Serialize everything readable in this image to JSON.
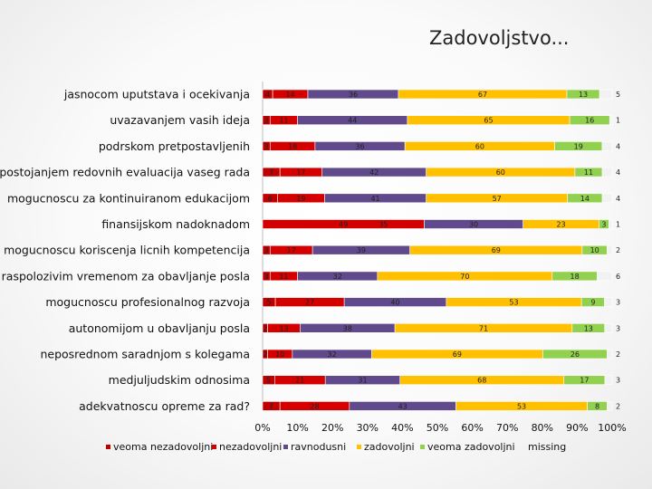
{
  "chart_data": {
    "type": "bar",
    "orientation": "horizontal",
    "stacked": "percent",
    "title": "Zadovoljstvo...",
    "categories": [
      "jasnocom uputstava i ocekivanja",
      "uvazavanjem vasih ideja",
      "podrskom pretpostavljenih",
      "postojanjem redovnih evaluacija vaseg rada",
      "mogucnoscu za kontinuiranom edukacijom",
      "finansijskom nadoknadom",
      "mogucnoscu koriscenja licnih kompetencija",
      "raspolozivim vremenom za obavljanje posla",
      "mogucnoscu profesionalnog razvoja",
      "autonomijom u obavljanju posla",
      "neposrednom saradnjom s kolegama",
      "medjuljudskim odnosima",
      "adekvatnoscu opreme za rad?"
    ],
    "series": [
      {
        "name": "veoma nezadovoljni",
        "color": "#c00000",
        "values": [
          4,
          3,
          3,
          7,
          6,
          0,
          3,
          3,
          5,
          2,
          2,
          5,
          7
        ],
        "labels": [
          "4",
          "3",
          "3",
          "7",
          "6",
          "",
          "3",
          "3",
          "5",
          "2",
          "2",
          "5",
          "7"
        ]
      },
      {
        "name": "nezadovoljni",
        "color": "#d40000",
        "values": [
          14,
          11,
          18,
          17,
          19,
          49,
          17,
          11,
          27,
          13,
          10,
          21,
          28
        ],
        "labels": [
          "14",
          "11",
          "18",
          "17",
          "19",
          "49",
          "17",
          "11",
          "27",
          "13",
          "10",
          "21",
          "28"
        ]
      },
      {
        "name": "ravnodusni",
        "color": "#604a8b",
        "values": [
          36,
          44,
          36,
          42,
          41,
          30,
          39,
          32,
          40,
          38,
          32,
          31,
          43
        ],
        "labels": [
          "36",
          "44",
          "36",
          "42",
          "41",
          "30",
          "39",
          "32",
          "40",
          "38",
          "32",
          "31",
          "43"
        ]
      },
      {
        "name": "zadovoljni",
        "color": "#ffc000",
        "values": [
          67,
          65,
          60,
          60,
          57,
          23,
          69,
          70,
          53,
          71,
          69,
          68,
          53
        ],
        "labels": [
          "67",
          "65",
          "60",
          "60",
          "57",
          "23",
          "69",
          "70",
          "53",
          "71",
          "69",
          "68",
          "53"
        ]
      },
      {
        "name": "veoma zadovoljni",
        "color": "#92d050",
        "values": [
          13,
          16,
          19,
          11,
          14,
          3,
          10,
          18,
          9,
          13,
          26,
          17,
          8
        ],
        "labels": [
          "13",
          "16",
          "19",
          "11",
          "14",
          "3",
          "10",
          "18",
          "9",
          "13",
          "26",
          "17",
          "8"
        ]
      },
      {
        "name": "missing",
        "color": "#f2f2f2",
        "values": [
          5,
          1,
          4,
          4,
          4,
          1,
          2,
          6,
          3,
          3,
          2,
          3,
          2
        ],
        "labels": [
          "5",
          "1",
          "4",
          "4",
          "4",
          "1",
          "2",
          "6",
          "3",
          "3",
          "2",
          "3",
          "2"
        ]
      }
    ],
    "finansijska_extra_label": "35",
    "xlim": [
      0,
      100
    ],
    "x_ticks": [
      "0%",
      "10%",
      "20%",
      "30%",
      "40%",
      "50%",
      "60%",
      "70%",
      "80%",
      "90%",
      "100%"
    ],
    "legend_position": "bottom",
    "grid": false
  }
}
